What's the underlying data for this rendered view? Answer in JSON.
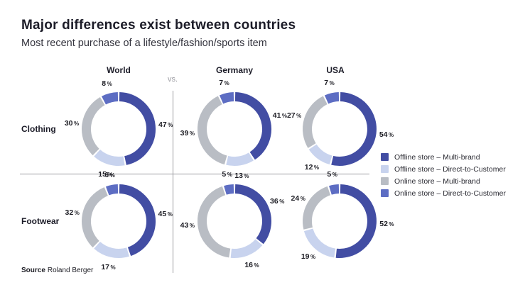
{
  "title": "Major differences exist between countries",
  "subtitle": "Most recent purchase of a lifestyle/fashion/sports item",
  "vs_label": "vs.",
  "columns": [
    "World",
    "Germany",
    "USA"
  ],
  "rows": [
    "Clothing",
    "Footwear"
  ],
  "source": {
    "label": "Source",
    "value": "Roland Berger"
  },
  "legend": {
    "items": [
      {
        "label": "Offline store – Multi-brand",
        "color": "#424DA3"
      },
      {
        "label": "Offline store – Direct-to-Customer",
        "color": "#C8D3EE"
      },
      {
        "label": "Online store – Multi-brand",
        "color": "#B9BDC4"
      },
      {
        "label": "Online store – Direct-to-Customer",
        "color": "#5D6DC3"
      }
    ]
  },
  "chart_data": {
    "type": "pie",
    "variant": "donut-grid",
    "unit": "%",
    "rows": [
      "Clothing",
      "Footwear"
    ],
    "columns": [
      "World",
      "Germany",
      "USA"
    ],
    "segments": [
      "Offline store – Multi-brand",
      "Offline store – Direct-to-Customer",
      "Online store – Multi-brand",
      "Online store – Direct-to-Customer"
    ],
    "colors": [
      "#424DA3",
      "#C8D3EE",
      "#B9BDC4",
      "#5D6DC3"
    ],
    "start_angle_deg": 0,
    "direction": "clockwise",
    "charts": [
      {
        "row": "Clothing",
        "column": "World",
        "values": [
          47,
          15,
          30,
          8
        ]
      },
      {
        "row": "Clothing",
        "column": "Germany",
        "values": [
          41,
          13,
          39,
          7
        ]
      },
      {
        "row": "Clothing",
        "column": "USA",
        "values": [
          54,
          12,
          27,
          7
        ]
      },
      {
        "row": "Footwear",
        "column": "World",
        "values": [
          45,
          17,
          32,
          6
        ]
      },
      {
        "row": "Footwear",
        "column": "Germany",
        "values": [
          36,
          16,
          43,
          5
        ]
      },
      {
        "row": "Footwear",
        "column": "USA",
        "values": [
          52,
          19,
          24,
          5
        ]
      }
    ]
  }
}
